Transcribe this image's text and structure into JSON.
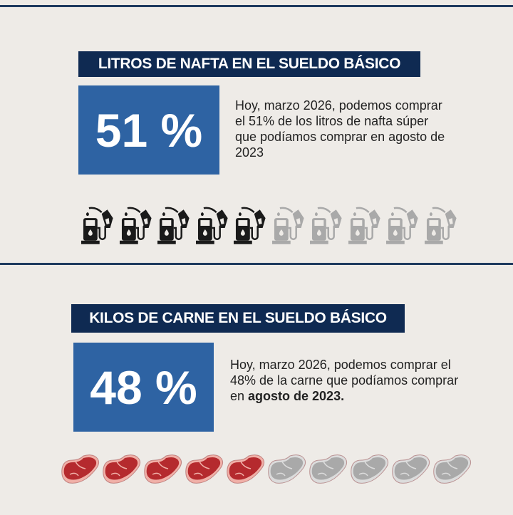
{
  "section1": {
    "title": "LITROS DE NAFTA EN EL SUELDO BÁSICO",
    "value": "51 %",
    "description": "Hoy, marzo 2026, podemos comprar el 51% de los litros de nafta súper que podíamos comprar en agosto de 2023",
    "icon": "fuel-pump-icon",
    "filled": 5,
    "total": 10,
    "colors": {
      "filled": "#1a1a1a",
      "empty": "#a9a9a9"
    }
  },
  "section2": {
    "title": "KILOS DE CARNE EN EL SUELDO BÁSICO",
    "value": "48 %",
    "description_prefix": "Hoy, marzo 2026, podemos comprar el 48% de la carne que podíamos comprar en ",
    "description_bold": "agosto de 2023.",
    "icon": "steak-icon",
    "filled": 5,
    "total": 10,
    "colors": {
      "filled": "#b52a2e",
      "empty": "#a9a9a9"
    }
  }
}
